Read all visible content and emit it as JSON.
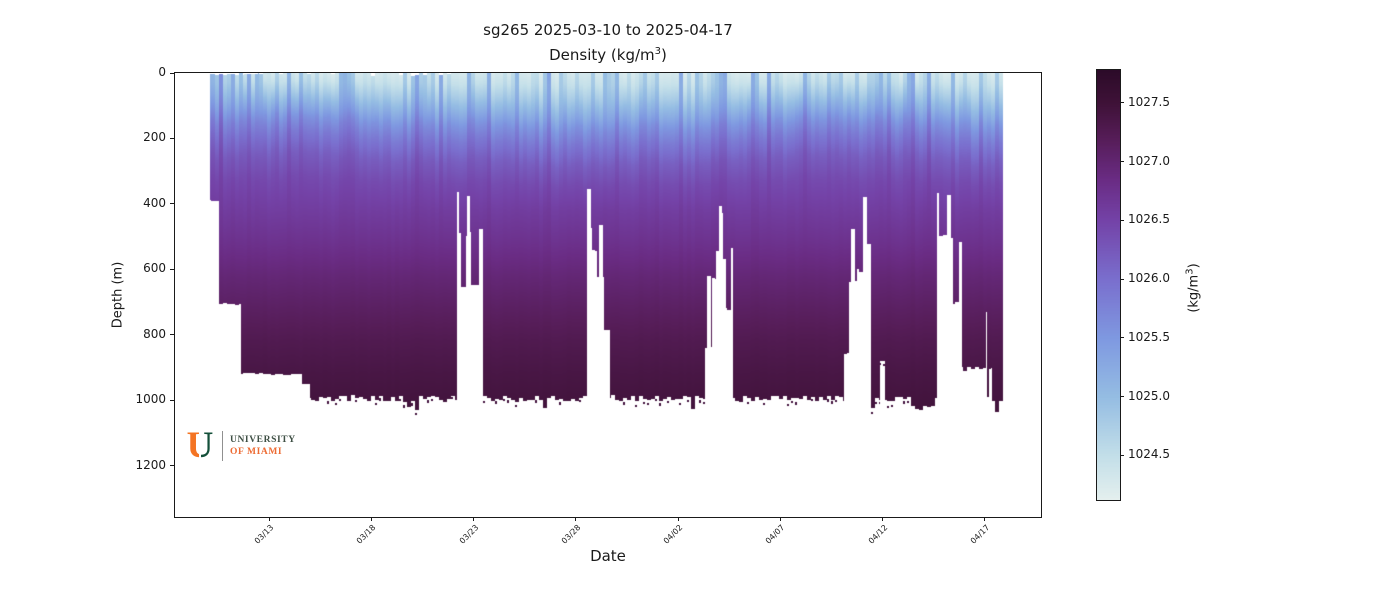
{
  "chart_data": {
    "type": "heatmap",
    "title": "sg265 2025-03-10 to 2025-04-17",
    "subtitle_pre": "Density (kg/m",
    "subtitle_sup": "3",
    "subtitle_post": ")",
    "xlabel": "Date",
    "ylabel": "Depth (m)",
    "colorbar_label_pre": "(kg/m",
    "colorbar_label_sup": "3",
    "colorbar_label_post": ")",
    "date_range": [
      "2025-03-10",
      "2025-04-17"
    ],
    "glider_id": "sg265",
    "x_ticks": [
      {
        "day": 3,
        "label": "03/13"
      },
      {
        "day": 8,
        "label": "03/18"
      },
      {
        "day": 13,
        "label": "03/23"
      },
      {
        "day": 18,
        "label": "03/28"
      },
      {
        "day": 23,
        "label": "04/02"
      },
      {
        "day": 28,
        "label": "04/07"
      },
      {
        "day": 33,
        "label": "04/12"
      },
      {
        "day": 38,
        "label": "04/17"
      }
    ],
    "y_ticks": [
      {
        "depth": 0,
        "label": "0"
      },
      {
        "depth": 200,
        "label": "200"
      },
      {
        "depth": 400,
        "label": "400"
      },
      {
        "depth": 600,
        "label": "600"
      },
      {
        "depth": 800,
        "label": "800"
      },
      {
        "depth": 1000,
        "label": "1000"
      },
      {
        "depth": 1200,
        "label": "1200"
      }
    ],
    "colorbar_ticks": [
      {
        "value": 1024.5,
        "label": "1024.5"
      },
      {
        "value": 1025.0,
        "label": "1025.0"
      },
      {
        "value": 1025.5,
        "label": "1025.5"
      },
      {
        "value": 1026.0,
        "label": "1026.0"
      },
      {
        "value": 1026.5,
        "label": "1026.5"
      },
      {
        "value": 1027.0,
        "label": "1027.0"
      },
      {
        "value": 1027.5,
        "label": "1027.5"
      }
    ],
    "x_domain_days": [
      -1.61,
      40.74
    ],
    "y_domain_m": [
      0,
      1357
    ],
    "data_day_range": [
      0.1,
      38.88
    ],
    "color_domain": [
      1024.12,
      1027.78
    ],
    "colormap_stops": [
      [
        1024.1,
        "#e7f1ef"
      ],
      [
        1024.5,
        "#c3dfe9"
      ],
      [
        1025.0,
        "#95bde3"
      ],
      [
        1025.5,
        "#7f99e1"
      ],
      [
        1026.0,
        "#7a6fce"
      ],
      [
        1026.5,
        "#7443a8"
      ],
      [
        1026.85,
        "#6a2c84"
      ],
      [
        1027.2,
        "#561d58"
      ],
      [
        1027.5,
        "#3f1238"
      ],
      [
        1027.8,
        "#2b0b28"
      ]
    ],
    "density_depth_profile": [
      [
        0,
        1024.35
      ],
      [
        30,
        1024.5
      ],
      [
        70,
        1024.82
      ],
      [
        110,
        1025.18
      ],
      [
        150,
        1025.55
      ],
      [
        200,
        1025.88
      ],
      [
        260,
        1026.18
      ],
      [
        330,
        1026.4
      ],
      [
        420,
        1026.58
      ],
      [
        520,
        1026.76
      ],
      [
        620,
        1026.96
      ],
      [
        720,
        1027.12
      ],
      [
        820,
        1027.27
      ],
      [
        920,
        1027.38
      ],
      [
        1020,
        1027.46
      ],
      [
        1100,
        1027.5
      ]
    ],
    "max_depth_segments": [
      [
        0.1,
        0.55,
        390,
        "solid"
      ],
      [
        0.55,
        1.6,
        705,
        "solid"
      ],
      [
        1.6,
        4.6,
        920,
        "solid"
      ],
      [
        4.6,
        5.0,
        950,
        "solid"
      ],
      [
        5.0,
        12.2,
        995,
        "jitter"
      ],
      [
        12.2,
        12.4,
        490,
        "comb"
      ],
      [
        12.4,
        12.62,
        655,
        "comb"
      ],
      [
        12.62,
        12.82,
        500,
        "comb"
      ],
      [
        12.82,
        13.45,
        650,
        "comb"
      ],
      [
        13.45,
        18.55,
        995,
        "jitter"
      ],
      [
        18.55,
        18.8,
        480,
        "comb"
      ],
      [
        18.8,
        19.05,
        545,
        "comb"
      ],
      [
        19.05,
        19.35,
        625,
        "comb"
      ],
      [
        19.35,
        19.65,
        785,
        "comb"
      ],
      [
        19.65,
        24.3,
        995,
        "jitter"
      ],
      [
        24.3,
        24.65,
        840,
        "comb"
      ],
      [
        24.65,
        24.85,
        630,
        "comb"
      ],
      [
        24.85,
        25.15,
        545,
        "comb"
      ],
      [
        25.15,
        25.35,
        575,
        "comb"
      ],
      [
        25.35,
        25.7,
        725,
        "comb"
      ],
      [
        25.7,
        31.1,
        995,
        "jitter"
      ],
      [
        31.1,
        31.35,
        855,
        "comb"
      ],
      [
        31.35,
        31.75,
        640,
        "comb"
      ],
      [
        31.75,
        32.05,
        605,
        "comb"
      ],
      [
        32.05,
        32.45,
        520,
        "comb"
      ],
      [
        32.45,
        32.85,
        995,
        "jitter"
      ],
      [
        32.85,
        33.1,
        875,
        "jitter"
      ],
      [
        33.1,
        34.6,
        995,
        "jitter"
      ],
      [
        34.6,
        35.35,
        1025,
        "jitter"
      ],
      [
        35.35,
        35.65,
        1000,
        "jitter"
      ],
      [
        35.65,
        36.45,
        500,
        "comb"
      ],
      [
        36.45,
        36.9,
        700,
        "comb"
      ],
      [
        36.9,
        38.07,
        902,
        "jitter"
      ],
      [
        38.07,
        38.2,
        990,
        "comb"
      ],
      [
        38.2,
        38.33,
        905,
        "comb"
      ],
      [
        38.33,
        38.88,
        1005,
        "jitter"
      ]
    ],
    "mixed_layer_bumps": [
      [
        18.3,
        2.0,
        0.3
      ],
      [
        38.6,
        1.6,
        0.22
      ],
      [
        23.4,
        1.1,
        0.18
      ],
      [
        10.0,
        1.6,
        0.1
      ],
      [
        14.5,
        1.2,
        0.1
      ],
      [
        4.5,
        2.2,
        -0.15
      ],
      [
        31.5,
        2.0,
        -0.08
      ]
    ]
  },
  "logo": {
    "line1": "UNIVERSITY",
    "line2": "OF MIAMI",
    "u_letter": "U",
    "orange": "#ed6b33",
    "split_orange": "#f47423",
    "split_green": "#14503a",
    "text_dark": "#3e4f44"
  }
}
